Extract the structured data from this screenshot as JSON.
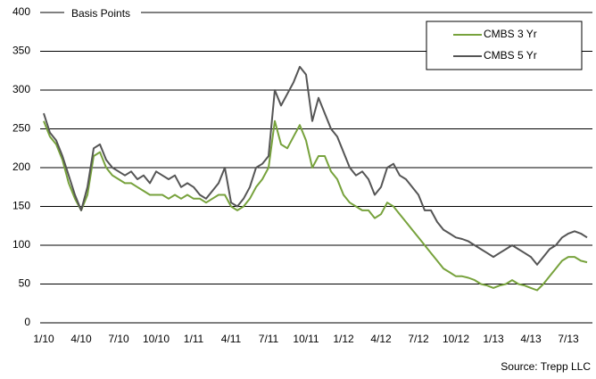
{
  "chart_data": {
    "type": "line",
    "y_label": "Basis Points",
    "source": "Source: Trepp LLC",
    "categories": [
      "1/10",
      null,
      null,
      null,
      null,
      null,
      "4/10",
      null,
      null,
      null,
      null,
      null,
      "7/10",
      null,
      null,
      null,
      null,
      null,
      "10/10",
      null,
      null,
      null,
      null,
      null,
      "1/11",
      null,
      null,
      null,
      null,
      null,
      "4/11",
      null,
      null,
      null,
      null,
      null,
      "7/11",
      null,
      null,
      null,
      null,
      null,
      "10/11",
      null,
      null,
      null,
      null,
      null,
      "1/12",
      null,
      null,
      null,
      null,
      null,
      "4/12",
      null,
      null,
      null,
      null,
      null,
      "7/12",
      null,
      null,
      null,
      null,
      null,
      "10/12",
      null,
      null,
      null,
      null,
      null,
      "1/13",
      null,
      null,
      null,
      null,
      null,
      "4/13",
      null,
      null,
      null,
      null,
      null,
      "7/13",
      null,
      null,
      null
    ],
    "series": [
      {
        "name": "CMBS 3 Yr",
        "color": "#77a23c",
        "values": [
          260,
          240,
          230,
          210,
          180,
          160,
          145,
          165,
          215,
          220,
          200,
          190,
          185,
          180,
          180,
          175,
          170,
          165,
          165,
          165,
          160,
          165,
          160,
          165,
          160,
          160,
          155,
          160,
          165,
          165,
          150,
          145,
          150,
          160,
          175,
          185,
          200,
          260,
          230,
          225,
          240,
          255,
          235,
          200,
          215,
          215,
          195,
          185,
          165,
          155,
          150,
          145,
          145,
          135,
          140,
          155,
          150,
          140,
          130,
          120,
          110,
          100,
          90,
          80,
          70,
          65,
          60,
          60,
          58,
          55,
          50,
          48,
          45,
          48,
          50,
          55,
          50,
          48,
          45,
          42,
          50,
          60,
          70,
          80,
          85,
          85,
          80,
          78
        ]
      },
      {
        "name": "CMBS 5 Yr",
        "color": "#555555",
        "values": [
          270,
          245,
          235,
          215,
          190,
          165,
          145,
          175,
          225,
          230,
          210,
          200,
          195,
          190,
          195,
          185,
          190,
          180,
          195,
          190,
          185,
          190,
          175,
          180,
          175,
          165,
          160,
          170,
          180,
          200,
          155,
          150,
          160,
          175,
          200,
          205,
          215,
          300,
          280,
          295,
          310,
          330,
          320,
          260,
          290,
          270,
          250,
          240,
          220,
          200,
          190,
          195,
          185,
          165,
          175,
          200,
          205,
          190,
          185,
          175,
          165,
          145,
          145,
          130,
          120,
          115,
          110,
          108,
          105,
          100,
          95,
          90,
          85,
          90,
          95,
          100,
          95,
          90,
          85,
          75,
          85,
          95,
          100,
          110,
          115,
          118,
          115,
          110
        ]
      }
    ],
    "ylim": [
      0,
      400
    ],
    "yticks": [
      0,
      50,
      100,
      150,
      200,
      250,
      300,
      350,
      400
    ],
    "grid": true,
    "legend": "upper right"
  }
}
